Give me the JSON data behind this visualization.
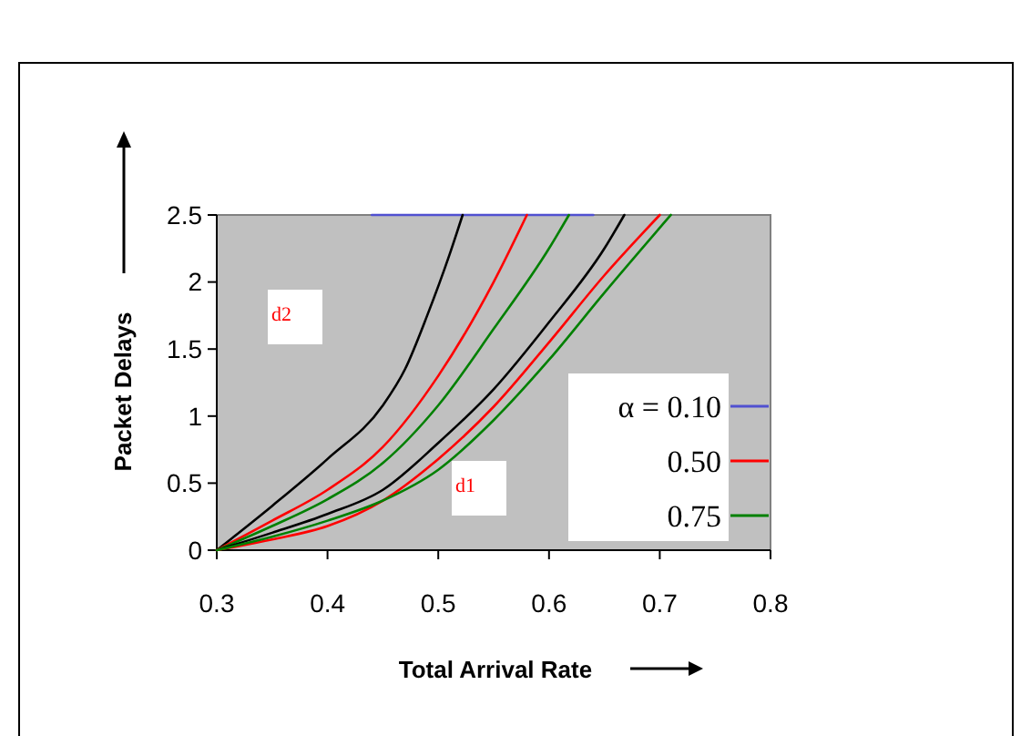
{
  "chart_data": {
    "type": "line",
    "xlabel": "Total Arrival Rate",
    "ylabel": "Packet Delays",
    "xlim": [
      0.3,
      0.8
    ],
    "ylim": [
      0,
      2.5
    ],
    "xticks": [
      0.3,
      0.4,
      0.5,
      0.6,
      0.7,
      0.8
    ],
    "yticks": [
      0,
      0.5,
      1,
      1.5,
      2,
      2.5
    ],
    "grid": false,
    "legend": "right",
    "marker": "none",
    "line_style": "solid",
    "annotations": [
      "d2",
      "d1"
    ],
    "series": [
      {
        "name": "α = 0.10",
        "color": "#5050d0",
        "x": [
          0.44,
          0.64
        ],
        "values": [
          2.5,
          2.5
        ]
      },
      {
        "color": "#000000",
        "x": [
          0.3,
          0.35,
          0.4,
          0.45,
          0.47,
          0.49,
          0.51,
          0.522
        ],
        "values": [
          0,
          0.33,
          0.68,
          1.08,
          1.35,
          1.75,
          2.2,
          2.5
        ]
      },
      {
        "name": "0.50",
        "color": "#ff0000",
        "x": [
          0.3,
          0.35,
          0.4,
          0.45,
          0.5,
          0.55,
          0.58
        ],
        "values": [
          0,
          0.22,
          0.45,
          0.77,
          1.3,
          2.0,
          2.5
        ]
      },
      {
        "name": "0.75",
        "color": "#008000",
        "x": [
          0.3,
          0.35,
          0.4,
          0.45,
          0.5,
          0.55,
          0.6,
          0.618
        ],
        "values": [
          0,
          0.18,
          0.38,
          0.65,
          1.08,
          1.65,
          2.25,
          2.5
        ]
      },
      {
        "color": "#000000",
        "x": [
          0.3,
          0.35,
          0.4,
          0.45,
          0.5,
          0.55,
          0.6,
          0.65,
          0.668
        ],
        "values": [
          0,
          0.13,
          0.27,
          0.45,
          0.8,
          1.2,
          1.7,
          2.25,
          2.5
        ]
      },
      {
        "color": "#ff0000",
        "x": [
          0.3,
          0.35,
          0.4,
          0.45,
          0.5,
          0.55,
          0.6,
          0.65,
          0.7
        ],
        "values": [
          0,
          0.08,
          0.18,
          0.37,
          0.68,
          1.07,
          1.55,
          2.05,
          2.5
        ]
      },
      {
        "color": "#008000",
        "x": [
          0.3,
          0.35,
          0.4,
          0.45,
          0.5,
          0.55,
          0.6,
          0.65,
          0.71
        ],
        "values": [
          0,
          0.1,
          0.22,
          0.37,
          0.6,
          0.97,
          1.42,
          1.92,
          2.5
        ]
      }
    ]
  }
}
